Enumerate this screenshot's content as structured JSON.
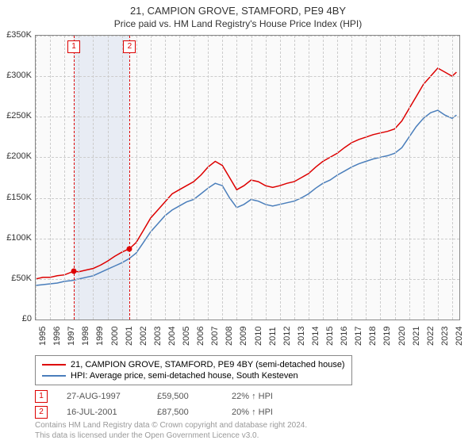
{
  "title": "21, CAMPION GROVE, STAMFORD, PE9 4BY",
  "subtitle": "Price paid vs. HM Land Registry's House Price Index (HPI)",
  "chart": {
    "type": "line",
    "background_color": "#fafafa",
    "grid_color": "#cccccc",
    "border_color": "#888888",
    "xlim": [
      1995,
      2024.5
    ],
    "ylim": [
      0,
      350000
    ],
    "ytick_step": 50000,
    "yticks": [
      "£0",
      "£50K",
      "£100K",
      "£150K",
      "£200K",
      "£250K",
      "£300K",
      "£350K"
    ],
    "xticks": [
      1995,
      1996,
      1997,
      1998,
      1999,
      2000,
      2001,
      2002,
      2003,
      2004,
      2005,
      2006,
      2007,
      2008,
      2009,
      2010,
      2011,
      2012,
      2013,
      2014,
      2015,
      2016,
      2017,
      2018,
      2019,
      2020,
      2021,
      2022,
      2023,
      2024
    ],
    "shaded_band": {
      "start": 1997.65,
      "end": 2001.54,
      "color": "#e8ecf4"
    },
    "series": [
      {
        "label": "21, CAMPION GROVE, STAMFORD, PE9 4BY (semi-detached house)",
        "color": "#dd0000",
        "line_width": 1.5,
        "data": [
          [
            1995,
            50000
          ],
          [
            1995.5,
            52000
          ],
          [
            1996,
            52000
          ],
          [
            1996.5,
            54000
          ],
          [
            1997,
            55000
          ],
          [
            1997.65,
            59500
          ],
          [
            1998,
            59000
          ],
          [
            1998.5,
            61000
          ],
          [
            1999,
            63000
          ],
          [
            1999.5,
            67000
          ],
          [
            2000,
            72000
          ],
          [
            2000.5,
            78000
          ],
          [
            2001,
            83000
          ],
          [
            2001.54,
            87500
          ],
          [
            2002,
            95000
          ],
          [
            2002.5,
            110000
          ],
          [
            2003,
            125000
          ],
          [
            2003.5,
            135000
          ],
          [
            2004,
            145000
          ],
          [
            2004.5,
            155000
          ],
          [
            2005,
            160000
          ],
          [
            2005.5,
            165000
          ],
          [
            2006,
            170000
          ],
          [
            2006.5,
            178000
          ],
          [
            2007,
            188000
          ],
          [
            2007.5,
            195000
          ],
          [
            2008,
            190000
          ],
          [
            2008.5,
            175000
          ],
          [
            2009,
            160000
          ],
          [
            2009.5,
            165000
          ],
          [
            2010,
            172000
          ],
          [
            2010.5,
            170000
          ],
          [
            2011,
            165000
          ],
          [
            2011.5,
            163000
          ],
          [
            2012,
            165000
          ],
          [
            2012.5,
            168000
          ],
          [
            2013,
            170000
          ],
          [
            2013.5,
            175000
          ],
          [
            2014,
            180000
          ],
          [
            2014.5,
            188000
          ],
          [
            2015,
            195000
          ],
          [
            2015.5,
            200000
          ],
          [
            2016,
            205000
          ],
          [
            2016.5,
            212000
          ],
          [
            2017,
            218000
          ],
          [
            2017.5,
            222000
          ],
          [
            2018,
            225000
          ],
          [
            2018.5,
            228000
          ],
          [
            2019,
            230000
          ],
          [
            2019.5,
            232000
          ],
          [
            2020,
            235000
          ],
          [
            2020.5,
            245000
          ],
          [
            2021,
            260000
          ],
          [
            2021.5,
            275000
          ],
          [
            2022,
            290000
          ],
          [
            2022.5,
            300000
          ],
          [
            2023,
            310000
          ],
          [
            2023.5,
            305000
          ],
          [
            2024,
            300000
          ],
          [
            2024.3,
            305000
          ]
        ]
      },
      {
        "label": "HPI: Average price, semi-detached house, South Kesteven",
        "color": "#4a7ebb",
        "line_width": 1.5,
        "data": [
          [
            1995,
            42000
          ],
          [
            1995.5,
            43000
          ],
          [
            1996,
            44000
          ],
          [
            1996.5,
            45000
          ],
          [
            1997,
            47000
          ],
          [
            1997.5,
            48000
          ],
          [
            1998,
            50000
          ],
          [
            1998.5,
            52000
          ],
          [
            1999,
            54000
          ],
          [
            1999.5,
            58000
          ],
          [
            2000,
            62000
          ],
          [
            2000.5,
            66000
          ],
          [
            2001,
            70000
          ],
          [
            2001.5,
            75000
          ],
          [
            2002,
            82000
          ],
          [
            2002.5,
            95000
          ],
          [
            2003,
            108000
          ],
          [
            2003.5,
            118000
          ],
          [
            2004,
            128000
          ],
          [
            2004.5,
            135000
          ],
          [
            2005,
            140000
          ],
          [
            2005.5,
            145000
          ],
          [
            2006,
            148000
          ],
          [
            2006.5,
            155000
          ],
          [
            2007,
            162000
          ],
          [
            2007.5,
            168000
          ],
          [
            2008,
            165000
          ],
          [
            2008.5,
            150000
          ],
          [
            2009,
            138000
          ],
          [
            2009.5,
            142000
          ],
          [
            2010,
            148000
          ],
          [
            2010.5,
            146000
          ],
          [
            2011,
            142000
          ],
          [
            2011.5,
            140000
          ],
          [
            2012,
            142000
          ],
          [
            2012.5,
            144000
          ],
          [
            2013,
            146000
          ],
          [
            2013.5,
            150000
          ],
          [
            2014,
            155000
          ],
          [
            2014.5,
            162000
          ],
          [
            2015,
            168000
          ],
          [
            2015.5,
            172000
          ],
          [
            2016,
            178000
          ],
          [
            2016.5,
            183000
          ],
          [
            2017,
            188000
          ],
          [
            2017.5,
            192000
          ],
          [
            2018,
            195000
          ],
          [
            2018.5,
            198000
          ],
          [
            2019,
            200000
          ],
          [
            2019.5,
            202000
          ],
          [
            2020,
            205000
          ],
          [
            2020.5,
            212000
          ],
          [
            2021,
            225000
          ],
          [
            2021.5,
            238000
          ],
          [
            2022,
            248000
          ],
          [
            2022.5,
            255000
          ],
          [
            2023,
            258000
          ],
          [
            2023.5,
            252000
          ],
          [
            2024,
            248000
          ],
          [
            2024.3,
            252000
          ]
        ]
      }
    ],
    "markers": [
      {
        "index": "1",
        "x": 1997.65,
        "y": 59500
      },
      {
        "index": "2",
        "x": 2001.54,
        "y": 87500
      }
    ]
  },
  "legend": {
    "items": [
      {
        "color": "#dd0000",
        "label": "21, CAMPION GROVE, STAMFORD, PE9 4BY (semi-detached house)"
      },
      {
        "color": "#4a7ebb",
        "label": "HPI: Average price, semi-detached house, South Kesteven"
      }
    ]
  },
  "sales": [
    {
      "index": "1",
      "date": "27-AUG-1997",
      "price": "£59,500",
      "delta": "22% ↑ HPI"
    },
    {
      "index": "2",
      "date": "16-JUL-2001",
      "price": "£87,500",
      "delta": "20% ↑ HPI"
    }
  ],
  "footer": {
    "line1": "Contains HM Land Registry data © Crown copyright and database right 2024.",
    "line2": "This data is licensed under the Open Government Licence v3.0."
  }
}
